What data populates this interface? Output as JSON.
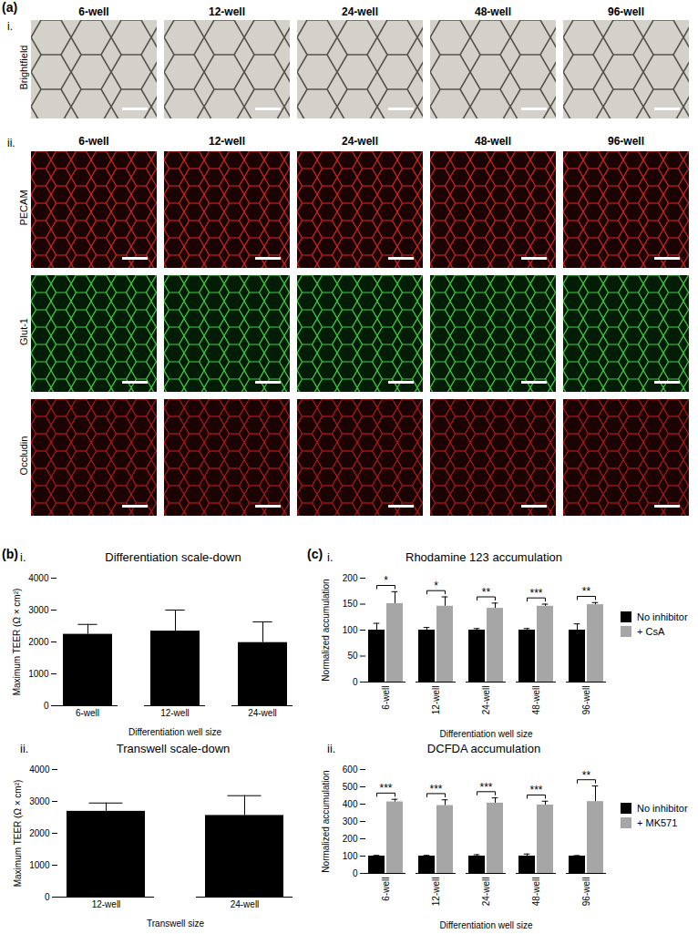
{
  "figure": {
    "a": {
      "label": "(a)",
      "rows": [
        {
          "panel": "i.",
          "columns": [
            "6-well",
            "12-well",
            "24-well",
            "48-well",
            "96-well"
          ],
          "channels": [
            "Brightfield"
          ]
        },
        {
          "panel": "ii.",
          "columns": [
            "6-well",
            "12-well",
            "24-well",
            "48-well",
            "96-well"
          ],
          "channels": [
            "PECAM",
            "Glut-1",
            "Occludin"
          ]
        }
      ]
    },
    "b": {
      "label": "(b)"
    },
    "c": {
      "label": "(c)"
    }
  },
  "chart_data": [
    {
      "type": "bar",
      "panel": "i.",
      "title": "Differentiation scale-down",
      "xlabel": "Differentiation well size",
      "ylabel": "Maximum TEER (Ω × cm²)",
      "categories": [
        "6-well",
        "12-well",
        "24-well"
      ],
      "values": [
        2240,
        2340,
        1980
      ],
      "errors": [
        310,
        660,
        650
      ],
      "color": "#000000",
      "ylim": [
        0,
        4000
      ],
      "yticks": [
        0,
        1000,
        2000,
        3000,
        4000
      ],
      "grid": false
    },
    {
      "type": "bar",
      "panel": "ii.",
      "title": "Transwell scale-down",
      "xlabel": "Transwell size",
      "ylabel": "Maximum TEER (Ω × cm²)",
      "categories": [
        "12-well",
        "24-well"
      ],
      "values": [
        2690,
        2560
      ],
      "errors": [
        260,
        620
      ],
      "color": "#000000",
      "ylim": [
        0,
        4000
      ],
      "yticks": [
        0,
        1000,
        2000,
        3000,
        4000
      ],
      "grid": false
    },
    {
      "type": "bar",
      "panel": "i.",
      "title": "Rhodamine 123 accumulation",
      "xlabel": "Differentiation well size",
      "ylabel": "Normalized accumulation",
      "categories": [
        "6-well",
        "12-well",
        "24-well",
        "48-well",
        "96-well"
      ],
      "series": [
        {
          "name": "No inhibitor",
          "color": "#000000",
          "values": [
            100,
            100,
            100,
            100,
            100
          ],
          "errors": [
            13,
            5,
            3,
            3,
            12
          ]
        },
        {
          "name": "+ CsA",
          "color": "#a6a6a6",
          "values": [
            151,
            146,
            142,
            146,
            149
          ],
          "errors": [
            23,
            18,
            10,
            4,
            4
          ]
        }
      ],
      "significance": [
        "*",
        "*",
        "**",
        "***",
        "**"
      ],
      "ylim": [
        0,
        200
      ],
      "yticks": [
        0,
        50,
        100,
        150,
        200
      ],
      "legend": "right",
      "grid": false
    },
    {
      "type": "bar",
      "panel": "ii.",
      "title": "DCFDA accumulation",
      "xlabel": "Differentiation well size",
      "ylabel": "Normalized accumulation",
      "categories": [
        "6-well",
        "12-well",
        "24-well",
        "48-well",
        "96-well"
      ],
      "series": [
        {
          "name": "No inhibitor",
          "color": "#000000",
          "values": [
            100,
            100,
            100,
            100,
            100
          ],
          "errors": [
            4,
            4,
            8,
            12,
            3
          ]
        },
        {
          "name": "+ MK571",
          "color": "#a6a6a6",
          "values": [
            413,
            392,
            406,
            395,
            415
          ],
          "errors": [
            15,
            33,
            30,
            22,
            90
          ]
        }
      ],
      "significance": [
        "***",
        "***",
        "***",
        "***",
        "**"
      ],
      "ylim": [
        0,
        600
      ],
      "yticks": [
        0,
        100,
        200,
        300,
        400,
        500,
        600
      ],
      "legend": "right",
      "grid": false
    }
  ]
}
